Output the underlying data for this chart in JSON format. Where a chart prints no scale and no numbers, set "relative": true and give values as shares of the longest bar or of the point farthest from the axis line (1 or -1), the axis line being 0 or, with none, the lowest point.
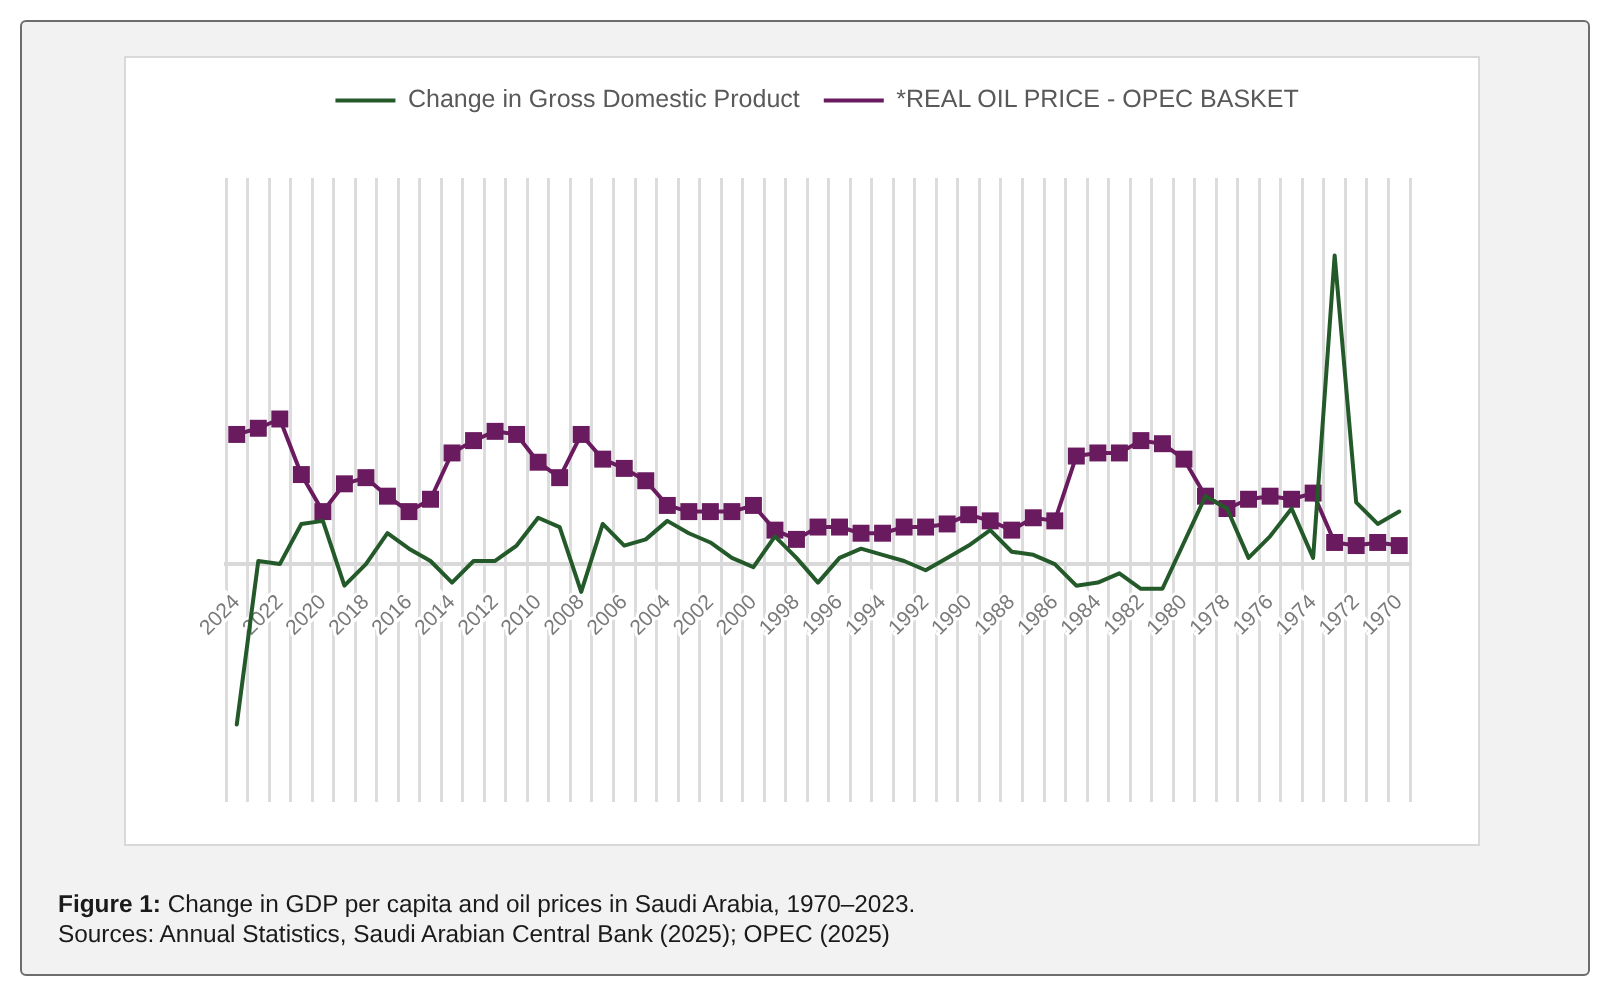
{
  "chart_data": {
    "type": "line",
    "relative": true,
    "grid": "x",
    "legend": "top",
    "tick_labels": "x",
    "categories": [
      "2024",
      null,
      "2022",
      null,
      "2020",
      null,
      "2018",
      null,
      "2016",
      null,
      "2014",
      null,
      "2012",
      null,
      "2010",
      null,
      "2008",
      null,
      "2006",
      null,
      "2004",
      null,
      "2002",
      null,
      "2000",
      null,
      "1998",
      null,
      "1996",
      null,
      "1994",
      null,
      "1992",
      null,
      "1990",
      null,
      "1988",
      null,
      "1986",
      null,
      "1984",
      null,
      "1982",
      null,
      "1980",
      null,
      "1978",
      null,
      "1976",
      null,
      "1974",
      null,
      "1972",
      null,
      "1970"
    ],
    "series": [
      {
        "name": "Change in Gross Domestic Product",
        "color": "#245a2a",
        "marker": "none",
        "values": [
          -0.52,
          0.01,
          0.0,
          0.13,
          0.14,
          -0.07,
          0.0,
          0.1,
          0.05,
          0.01,
          -0.06,
          0.01,
          0.01,
          0.06,
          0.15,
          0.12,
          -0.09,
          0.13,
          0.06,
          0.08,
          0.14,
          0.1,
          0.07,
          0.02,
          -0.01,
          0.09,
          0.02,
          -0.06,
          0.02,
          0.05,
          0.03,
          0.01,
          -0.02,
          0.02,
          0.06,
          0.11,
          0.04,
          0.03,
          0.0,
          -0.07,
          -0.06,
          -0.03,
          -0.08,
          -0.08,
          0.07,
          0.22,
          0.18,
          0.02,
          0.09,
          0.18,
          0.02,
          1.0,
          0.2,
          0.13,
          0.17
        ]
      },
      {
        "name": "*REAL OIL PRICE - OPEC BASKET",
        "color": "#6a1b5f",
        "marker": "square",
        "values": [
          0.42,
          0.44,
          0.47,
          0.29,
          0.17,
          0.26,
          0.28,
          0.22,
          0.17,
          0.21,
          0.36,
          0.4,
          0.43,
          0.42,
          0.33,
          0.28,
          0.42,
          0.34,
          0.31,
          0.27,
          0.19,
          0.17,
          0.17,
          0.17,
          0.19,
          0.11,
          0.08,
          0.12,
          0.12,
          0.1,
          0.1,
          0.12,
          0.12,
          0.13,
          0.16,
          0.14,
          0.11,
          0.15,
          0.14,
          0.35,
          0.36,
          0.36,
          0.4,
          0.39,
          0.34,
          0.22,
          0.18,
          0.21,
          0.22,
          0.21,
          0.23,
          0.07,
          0.06,
          0.07,
          0.06
        ]
      }
    ],
    "annotations": [
      "Figure 1: Change in GDP per capita and oil prices in Saudi Arabia, 1970–2023.",
      "Sources: Annual Statistics, Saudi Arabian Central Bank (2025); OPEC (2025)"
    ]
  }
}
